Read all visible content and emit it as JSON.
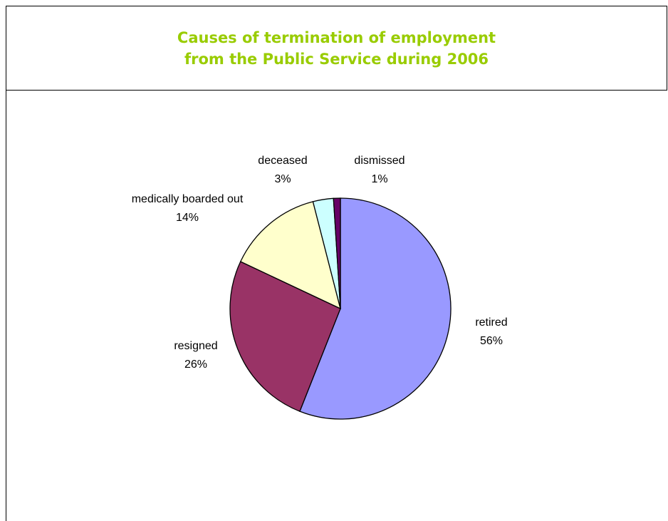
{
  "chart_data": {
    "type": "pie",
    "title": [
      "Causes of termination of employment",
      "from the Public Service during 2006"
    ],
    "categories": [
      "retired",
      "resigned",
      "medically boarded out",
      "deceased",
      "dismissed"
    ],
    "values": [
      56,
      26,
      14,
      3,
      1
    ],
    "value_labels": [
      "56%",
      "26%",
      "14%",
      "3%",
      "1%"
    ],
    "colors": [
      "#9999ff",
      "#993366",
      "#ffffcc",
      "#ccffff",
      "#660066"
    ]
  }
}
